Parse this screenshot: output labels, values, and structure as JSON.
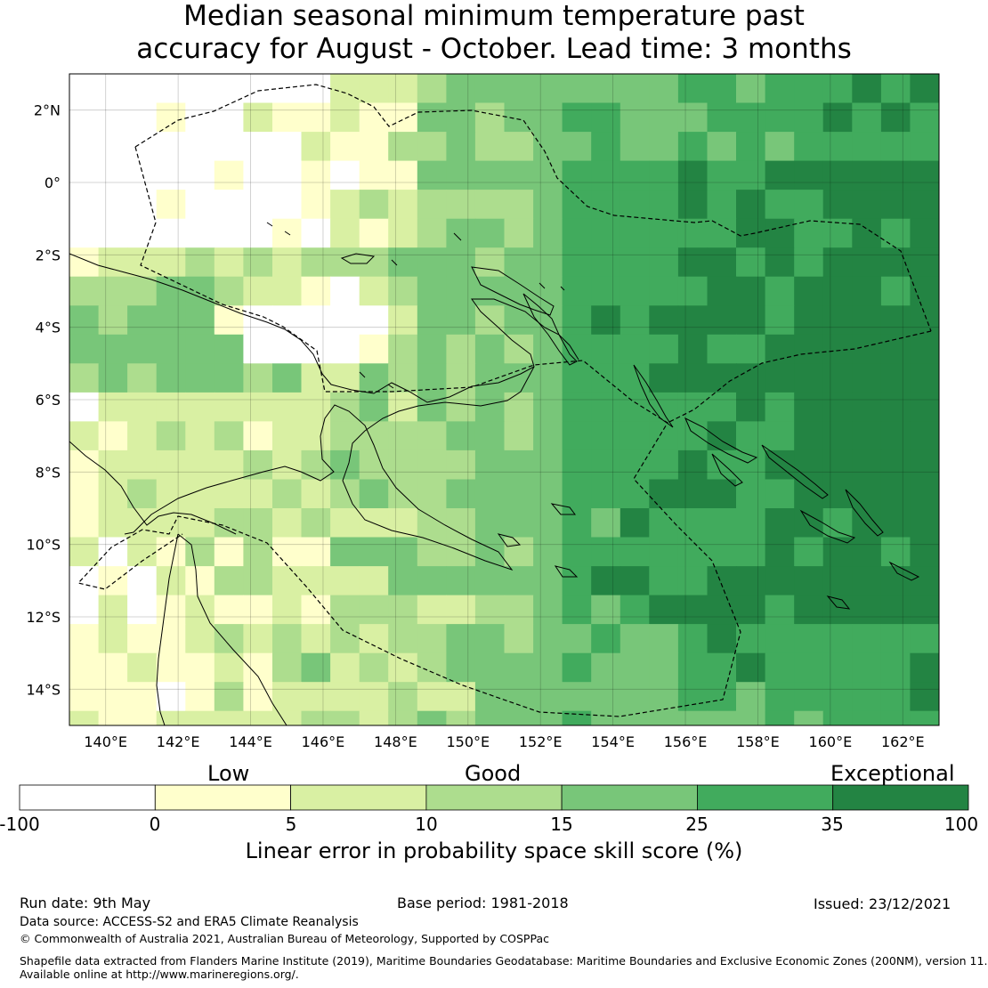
{
  "title": {
    "line1": "Median seasonal minimum temperature past",
    "line2": "accuracy for August - October. Lead time: 3 months"
  },
  "map": {
    "lon_range": [
      139,
      163
    ],
    "lat_range": [
      -15,
      3
    ],
    "lon_ticks": [
      "140°E",
      "142°E",
      "144°E",
      "146°E",
      "148°E",
      "150°E",
      "152°E",
      "154°E",
      "156°E",
      "158°E",
      "160°E",
      "162°E"
    ],
    "lat_ticks": [
      "2°N",
      "0°",
      "2°S",
      "4°S",
      "6°S",
      "8°S",
      "10°S",
      "12°S",
      "14°S"
    ],
    "grid": true,
    "cell_size_deg": 0.8,
    "boundary_style": "dashed",
    "coastline_color": "#000000"
  },
  "colorbar": {
    "categories": [
      "Low",
      "Good",
      "Exceptional"
    ],
    "bounds": [
      "-100",
      "0",
      "5",
      "10",
      "15",
      "25",
      "35",
      "100"
    ],
    "colors": [
      "#ffffff",
      "#ffffcc",
      "#d9f0a3",
      "#addd8e",
      "#78c679",
      "#41ab5d",
      "#238443"
    ],
    "label": "Linear error in probability space skill score (%)"
  },
  "footer": {
    "run_date": "Run date: 9th May",
    "base_period": "Base period: 1981-2018",
    "issued": "Issued: 23/12/2021",
    "data_source": "Data source: ACCESS-S2 and ERA5 Climate Reanalysis",
    "copyright": "© Commonwealth of Australia 2021, Australian Bureau of Meteorology, Supported by COSPPac",
    "shapefile_line1": "Shapefile data extracted from Flanders Marine Institute (2019), Maritime Boundaries Geodatabase: Maritime Boundaries and Exclusive Economic Zones (200NM), version 11.",
    "shapefile_line2": "Available online at http://www.marineregions.org/."
  }
}
